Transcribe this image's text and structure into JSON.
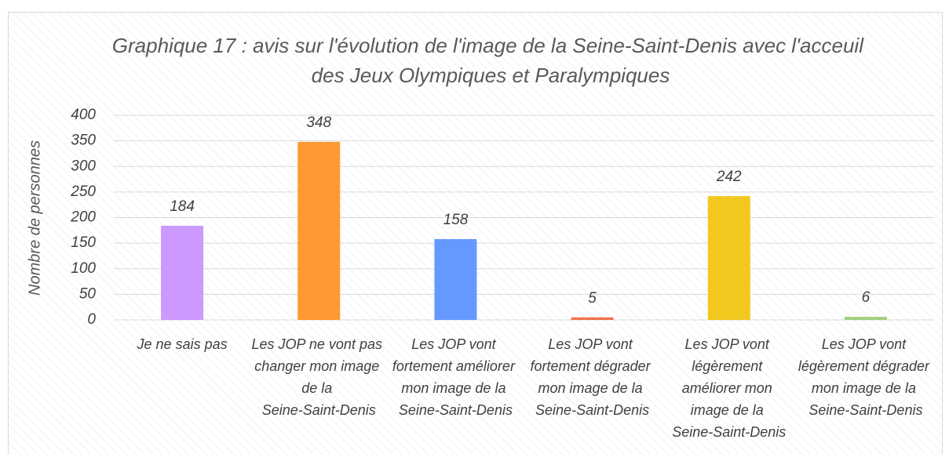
{
  "chart_data": {
    "type": "bar",
    "title": "Graphique 17 : avis sur l'évolution de l'image de la Seine-Saint-Denis avec l'acceuil des Jeux Olympiques et Paralympiques",
    "y_label": "Nombre de personnes",
    "categories": [
      "Je ne sais pas",
      "Les JOP ne vont pas changer mon image de la Seine-Saint-Denis",
      "Les JOP vont fortement améliorer mon image de la Seine-Saint-Denis",
      "Les JOP vont fortement dégrader mon image de la Seine-Saint-Denis",
      "Les JOP vont légèrement améliorer mon image de la Seine-Saint-Denis",
      "Les JOP vont légèrement dégrader mon image de la Seine-Saint-Denis"
    ],
    "values": [
      184,
      348,
      158,
      5,
      242,
      6
    ],
    "colors": [
      "#cc99ff",
      "#ff9933",
      "#6699ff",
      "#f2704c",
      "#f2c81f",
      "#9fd07e"
    ],
    "ylim": [
      0,
      400
    ],
    "yticks": [
      0,
      50,
      100,
      150,
      200,
      250,
      300,
      350,
      400
    ],
    "grid": true
  }
}
